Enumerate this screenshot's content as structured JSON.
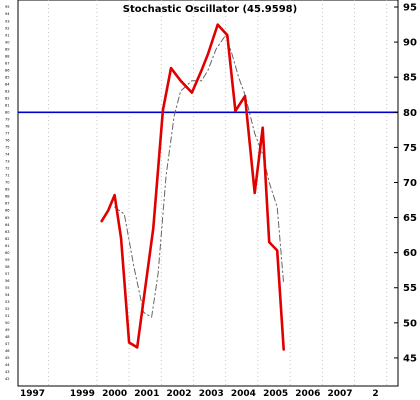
{
  "chart_data": {
    "type": "line",
    "title": "Stochastic Oscillator (45.9598)",
    "xlabel": "",
    "ylabel": "",
    "xlim": [
      1997.0,
      2008.8
    ],
    "ylim": [
      41,
      96
    ],
    "grid": true,
    "x_tick_labels": [
      "1997",
      "1999",
      "2000",
      "2001",
      "2002",
      "2003",
      "2004",
      "2005",
      "2006",
      "2007",
      "2"
    ],
    "y_tick_values": [
      45,
      50,
      55,
      60,
      65,
      70,
      75,
      80,
      85,
      90,
      95
    ],
    "y_minor_tick_values": [
      42,
      43,
      44,
      45,
      46,
      47,
      48,
      49,
      50,
      51,
      52,
      53,
      54,
      55,
      56,
      57,
      58,
      59,
      60,
      61,
      62,
      63,
      64,
      65,
      66,
      67,
      68,
      69,
      70,
      71,
      72,
      73,
      74,
      75,
      76,
      77,
      78,
      79,
      80,
      81,
      82,
      83,
      84,
      85,
      86,
      87,
      88,
      89,
      90,
      91,
      92,
      93,
      94,
      95
    ],
    "reference_line": {
      "value": 80,
      "color": "#0000cc"
    },
    "series": [
      {
        "style": "solid",
        "color": "#e00000",
        "x": [
          1999.6,
          1999.8,
          2000.0,
          2000.2,
          2000.45,
          2000.7,
          2001.2,
          2001.5,
          2001.75,
          2002.05,
          2002.4,
          2002.7,
          2002.9,
          2003.2,
          2003.5,
          2003.75,
          2004.05,
          2004.35,
          2004.6,
          2004.8,
          2005.05,
          2005.25
        ],
        "y": [
          64.5,
          66.0,
          68.2,
          62.0,
          47.2,
          46.5,
          63.5,
          80.3,
          86.3,
          84.5,
          82.8,
          86.0,
          88.3,
          92.5,
          91.0,
          80.2,
          82.3,
          68.5,
          77.8,
          61.5,
          60.3,
          46.2
        ]
      },
      {
        "style": "dashed",
        "color": "#666666",
        "x": [
          2000.0,
          2000.3,
          2000.6,
          2000.9,
          2001.15,
          2001.35,
          2001.6,
          2001.85,
          2002.05,
          2002.4,
          2002.7,
          2002.9,
          2003.15,
          2003.45,
          2003.65,
          2003.85,
          2004.05,
          2004.35,
          2004.6,
          2004.8,
          2005.05,
          2005.25
        ],
        "y": [
          66.5,
          65.5,
          58.0,
          51.5,
          50.8,
          57.0,
          71.0,
          79.5,
          83.0,
          84.5,
          84.5,
          86.0,
          89.0,
          91.0,
          88.2,
          85.0,
          82.5,
          77.0,
          74.0,
          70.0,
          66.5,
          55.5
        ]
      }
    ]
  }
}
